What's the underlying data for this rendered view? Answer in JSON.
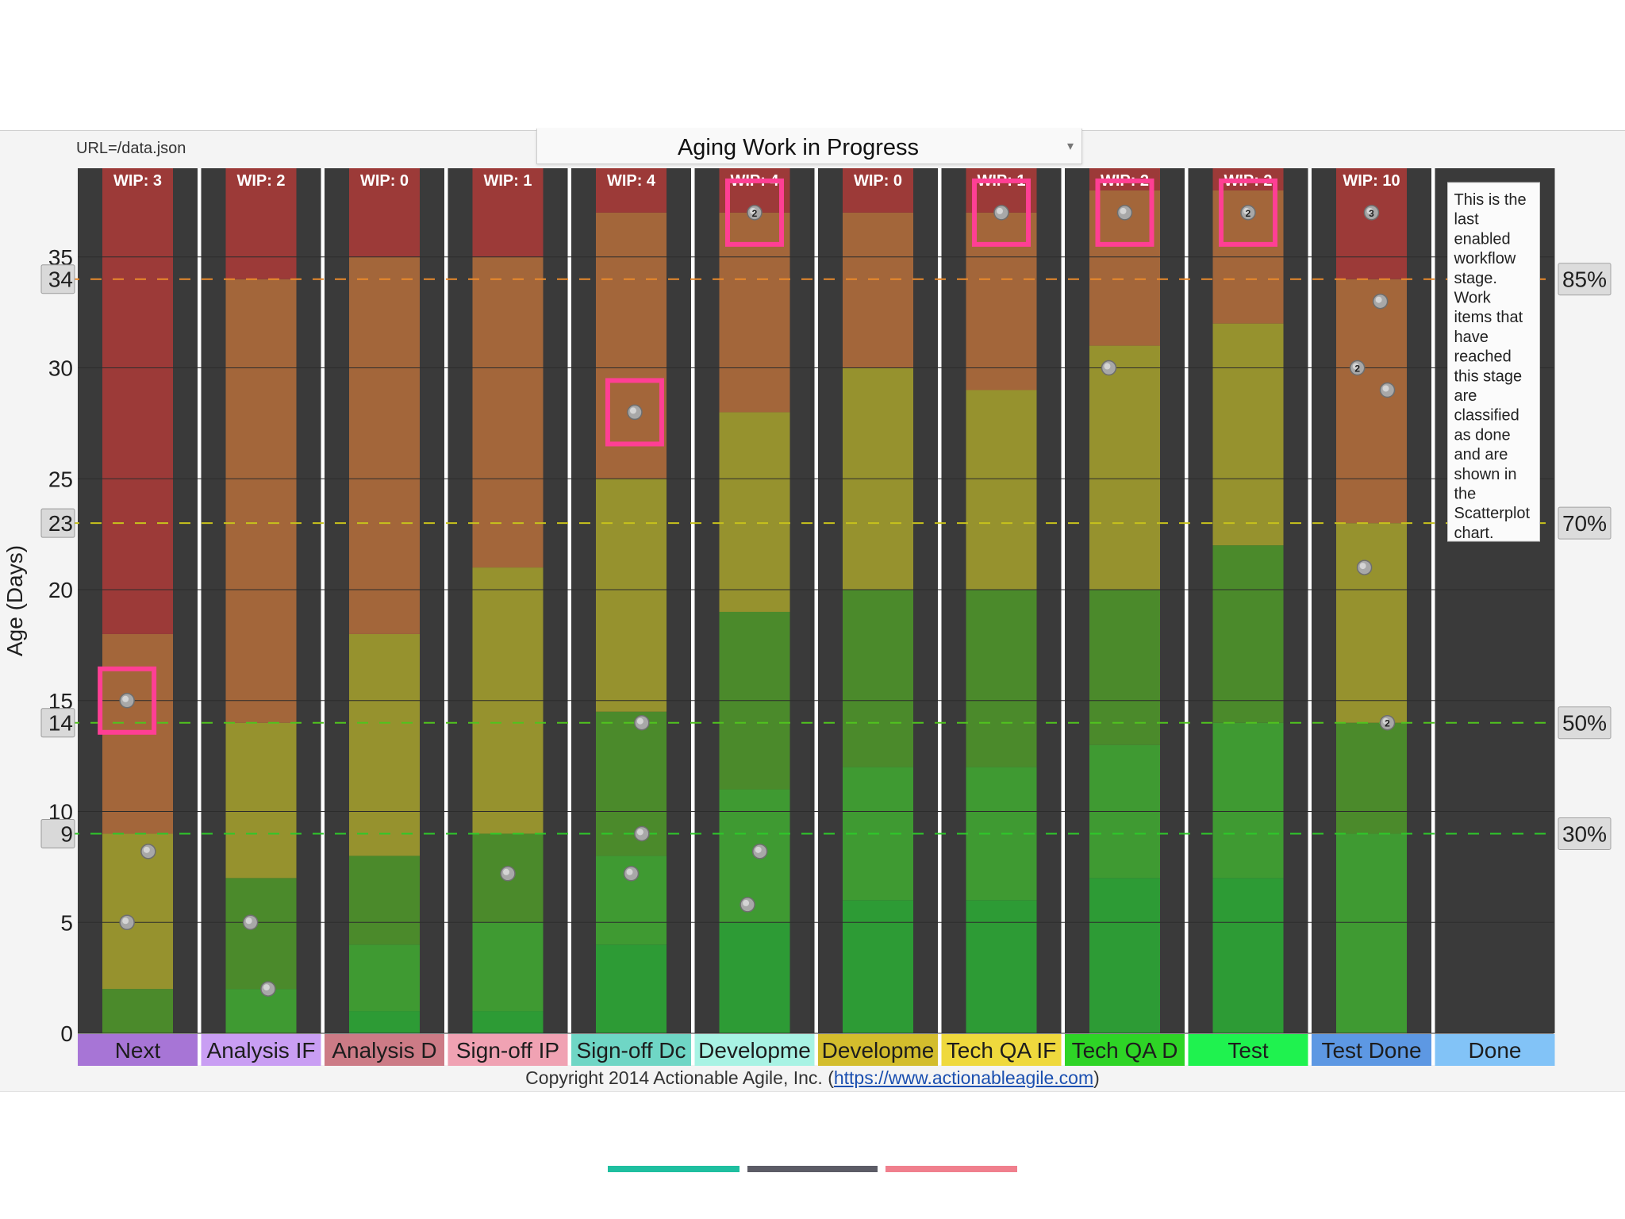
{
  "header": {
    "url_label": "URL=/data.json",
    "title": "Aging Work in Progress",
    "dropdown_caret": "▾"
  },
  "footer": {
    "copyright_prefix": "Copyright 2014 Actionable Agile, Inc. (",
    "link": "https://www.actionableagile.com",
    "copyright_suffix": ")"
  },
  "colors": {
    "red": "#9c3a38",
    "orange": "#a3663a",
    "olive": "#96922e",
    "green1": "#4b8a2b",
    "green2": "#3f9a32",
    "green3": "#2d9b35",
    "green4": "#2a7b2b",
    "highlight": "#ff3f94"
  },
  "chart_data": {
    "type": "scatter",
    "title": "Aging Work in Progress",
    "ylabel": "Age (Days)",
    "ylim": [
      0,
      39
    ],
    "yticks": [
      0,
      5,
      10,
      15,
      20,
      25,
      30,
      35
    ],
    "percentiles": [
      {
        "label": "85%",
        "value": 34,
        "color": "#e98a2c"
      },
      {
        "label": "70%",
        "value": 23,
        "color": "#c7c21c"
      },
      {
        "label": "50%",
        "value": 14,
        "color": "#50c31e"
      },
      {
        "label": "30%",
        "value": 9,
        "color": "#2ec82a"
      }
    ],
    "columns": [
      {
        "name": "Next",
        "short": "Next",
        "wip": "WIP: 3",
        "color": "#a775d6",
        "bands": [
          0,
          2,
          9,
          18,
          39
        ],
        "points": [
          {
            "age": 15,
            "offset": -0.3,
            "highlight": true
          },
          {
            "age": 8.2,
            "offset": 0.3
          },
          {
            "age": 5,
            "offset": -0.3
          }
        ]
      },
      {
        "name": "Analysis IP",
        "short": "Analysis IF",
        "wip": "WIP: 2",
        "color": "#c99ef3",
        "bands": [
          0,
          2,
          7,
          14,
          34,
          39
        ],
        "points": [
          {
            "age": 5,
            "offset": -0.3
          },
          {
            "age": 2,
            "offset": 0.2
          }
        ]
      },
      {
        "name": "Analysis Done",
        "short": "Analysis D",
        "wip": "WIP: 0",
        "color": "#cc7b86",
        "bands": [
          0,
          1,
          4,
          8,
          18,
          35,
          39
        ],
        "points": []
      },
      {
        "name": "Sign-off IP",
        "short": "Sign-off IP",
        "wip": "WIP: 1",
        "color": "#f0a2b3",
        "bands": [
          0,
          1,
          5,
          9,
          21,
          35,
          39
        ],
        "points": [
          {
            "age": 7.2,
            "offset": 0.0
          }
        ]
      },
      {
        "name": "Sign-off Done",
        "short": "Sign-off Dc",
        "wip": "WIP: 4",
        "color": "#6fd6c5",
        "bands": [
          0,
          4,
          8,
          14.5,
          25,
          37,
          39
        ],
        "points": [
          {
            "age": 28,
            "offset": 0.1,
            "highlight": true
          },
          {
            "age": 14,
            "offset": 0.3
          },
          {
            "age": 9,
            "offset": 0.3
          },
          {
            "age": 7.2,
            "offset": 0.0
          }
        ]
      },
      {
        "name": "Development IP",
        "short": "Developme",
        "wip": "WIP: 4",
        "color": "#a8f3e4",
        "bands": [
          0,
          5,
          11,
          19,
          28,
          37,
          39
        ],
        "points": [
          {
            "age": 37,
            "offset": 0.0,
            "label": "2",
            "highlight": true
          },
          {
            "age": 8.2,
            "offset": 0.15
          },
          {
            "age": 5.8,
            "offset": -0.2
          }
        ]
      },
      {
        "name": "Development Done",
        "short": "Developme",
        "wip": "WIP: 0",
        "color": "#d3bd2d",
        "bands": [
          0,
          6,
          12,
          20,
          30,
          37,
          39
        ],
        "points": []
      },
      {
        "name": "Tech QA IP",
        "short": "Tech QA IF",
        "wip": "WIP: 1",
        "color": "#efd93d",
        "bands": [
          0,
          6,
          12,
          20,
          29,
          37,
          39
        ],
        "points": [
          {
            "age": 37,
            "offset": 0.0,
            "highlight": true
          }
        ]
      },
      {
        "name": "Tech QA Done",
        "short": "Tech QA D",
        "wip": "WIP: 2",
        "color": "#2ed426",
        "bands": [
          0,
          7,
          13,
          20,
          31,
          38,
          39
        ],
        "points": [
          {
            "age": 37,
            "offset": 0.0,
            "highlight": true
          },
          {
            "age": 30,
            "offset": -0.45
          }
        ]
      },
      {
        "name": "Test",
        "short": "Test",
        "wip": "WIP: 2",
        "color": "#1ff24f",
        "bands": [
          0,
          7,
          14,
          22,
          32,
          38,
          39
        ],
        "points": [
          {
            "age": 37,
            "offset": 0.0,
            "label": "2",
            "highlight": true
          }
        ]
      },
      {
        "name": "Test Done",
        "short": "Test Done",
        "wip": "WIP: 10",
        "color": "#5d98e3",
        "bands": [
          0,
          9,
          14,
          23,
          34,
          39
        ],
        "points": [
          {
            "age": 37,
            "offset": 0.0,
            "label": "3"
          },
          {
            "age": 33,
            "offset": 0.25
          },
          {
            "age": 30,
            "offset": -0.4,
            "label": "2"
          },
          {
            "age": 29,
            "offset": 0.45
          },
          {
            "age": 21,
            "offset": -0.2
          },
          {
            "age": 14,
            "offset": 0.45,
            "label": "2"
          }
        ]
      },
      {
        "name": "Done",
        "short": "Done",
        "wip": "",
        "color": "#82c3f7",
        "bands": [],
        "points": []
      }
    ],
    "done_note": [
      "This is the",
      "last",
      "enabled",
      "workflow",
      "stage.",
      "Work",
      "items that",
      "have",
      "reached",
      "this stage",
      "are",
      "classified",
      "as done",
      "and are",
      "shown in",
      "the",
      "Scatterplot",
      "chart."
    ]
  }
}
